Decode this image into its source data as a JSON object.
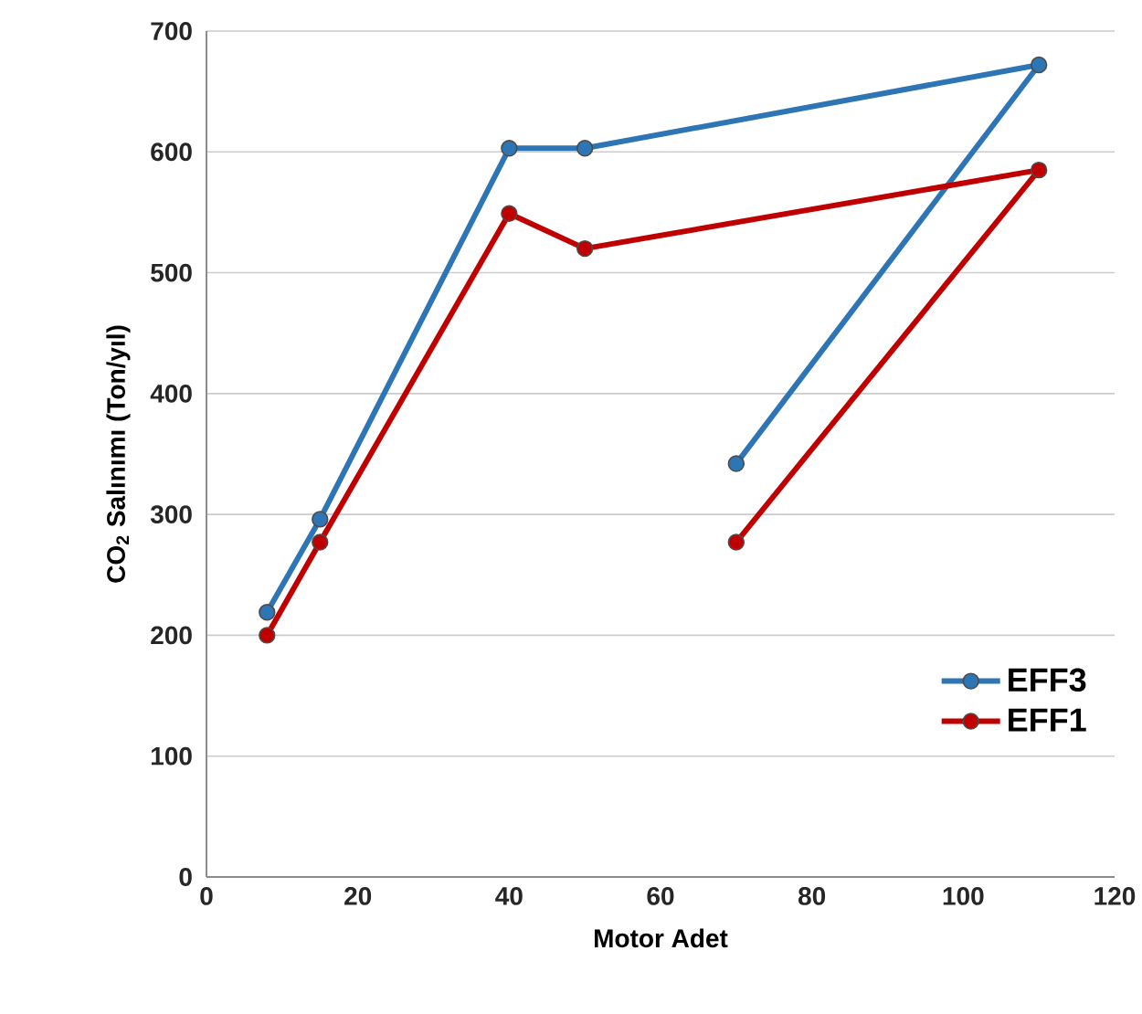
{
  "chart_data": {
    "type": "line",
    "xlabel": "Motor Adet",
    "ylabel": "CO$_{2}$ Salınımı (Ton/yıl)",
    "xlim": [
      0,
      120
    ],
    "ylim": [
      0,
      700
    ],
    "xticks": [
      0,
      20,
      40,
      60,
      80,
      100,
      120
    ],
    "yticks": [
      0,
      100,
      200,
      300,
      400,
      500,
      600,
      700
    ],
    "grid": "y",
    "legend": "bottom right",
    "marker": "circle",
    "line_style": "solid",
    "series": [
      {
        "name": "EFF3",
        "color": "#2e75b6",
        "x": [
          8,
          15,
          40,
          50,
          110,
          70
        ],
        "values": [
          219,
          296,
          603,
          603,
          672,
          342
        ]
      },
      {
        "name": "EFF1",
        "color": "#c00000",
        "x": [
          8,
          15,
          40,
          50,
          110,
          70
        ],
        "values": [
          200,
          277,
          549,
          520,
          585,
          277
        ]
      }
    ]
  }
}
